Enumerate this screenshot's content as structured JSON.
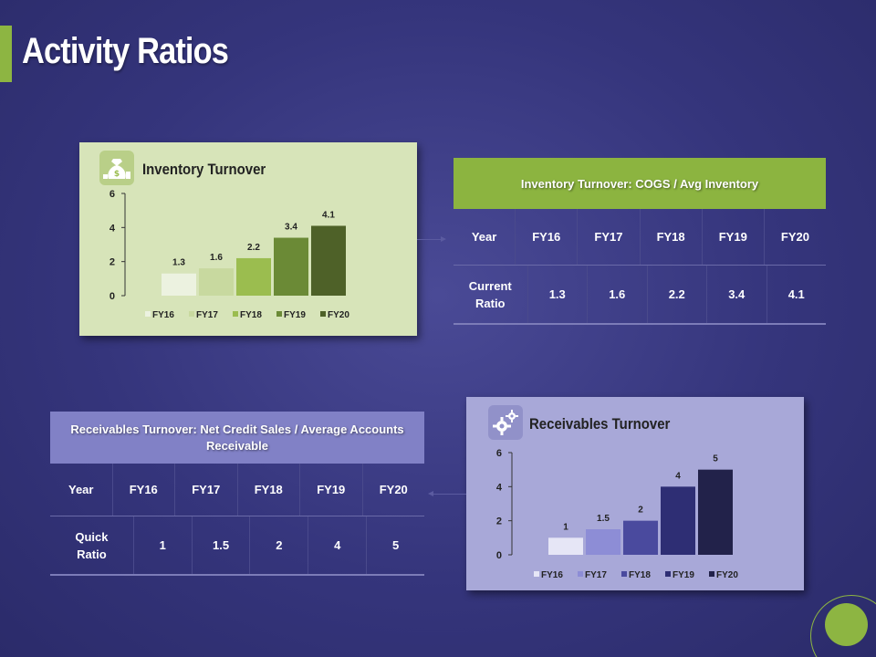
{
  "page": {
    "title": "Activity Ratios"
  },
  "colors": {
    "accent_green": "#8db542",
    "inventory_bars": [
      "#ecf2e0",
      "#c8d99f",
      "#9bbd4f",
      "#6b8a36",
      "#4e6128"
    ],
    "receivables_bars": [
      "#e6e6f6",
      "#8d8dd6",
      "#4a4a9e",
      "#2e2e74",
      "#22224a"
    ]
  },
  "inventory_card": {
    "title": "Inventory Turnover",
    "icon": "money-bag-icon"
  },
  "receivables_card": {
    "title": "Receivables Turnover",
    "icon": "gears-icon"
  },
  "chart_data": [
    {
      "type": "bar",
      "title": "Inventory Turnover",
      "categories": [
        "FY16",
        "FY17",
        "FY18",
        "FY19",
        "FY20"
      ],
      "values": [
        1.3,
        1.6,
        2.2,
        3.4,
        4.1
      ],
      "data_labels": [
        "1.3",
        "1.6",
        "2.2",
        "3.4",
        "4.1"
      ],
      "yticks": [
        "0",
        "2",
        "4",
        "6"
      ],
      "ylim": [
        0,
        6
      ],
      "legend": [
        "FY16",
        "FY17",
        "FY18",
        "FY19",
        "FY20"
      ],
      "legend_position": "bottom",
      "xlabel": "",
      "ylabel": "",
      "grid": false
    },
    {
      "type": "bar",
      "title": "Receivables Turnover",
      "categories": [
        "FY16",
        "FY17",
        "FY18",
        "FY19",
        "FY20"
      ],
      "values": [
        1,
        1.5,
        2,
        4,
        5
      ],
      "data_labels": [
        "1",
        "1.5",
        "2",
        "4",
        "5"
      ],
      "yticks": [
        "0",
        "2",
        "4",
        "6"
      ],
      "ylim": [
        0,
        6
      ],
      "legend": [
        "FY16",
        "FY17",
        "FY18",
        "FY19",
        "FY20"
      ],
      "legend_position": "bottom",
      "xlabel": "",
      "ylabel": "",
      "grid": false
    }
  ],
  "inventory_table": {
    "header": "Inventory Turnover: COGS / Avg Inventory",
    "rows": [
      [
        "Year",
        "FY16",
        "FY17",
        "FY18",
        "FY19",
        "FY20"
      ],
      [
        "Current Ratio",
        "1.3",
        "1.6",
        "2.2",
        "3.4",
        "4.1"
      ]
    ]
  },
  "receivables_table": {
    "header": "Receivables Turnover: Net Credit Sales / Average Accounts Receivable",
    "rows": [
      [
        "Year",
        "FY16",
        "FY17",
        "FY18",
        "FY19",
        "FY20"
      ],
      [
        "Quick Ratio",
        "1",
        "1.5",
        "2",
        "4",
        "5"
      ]
    ]
  }
}
